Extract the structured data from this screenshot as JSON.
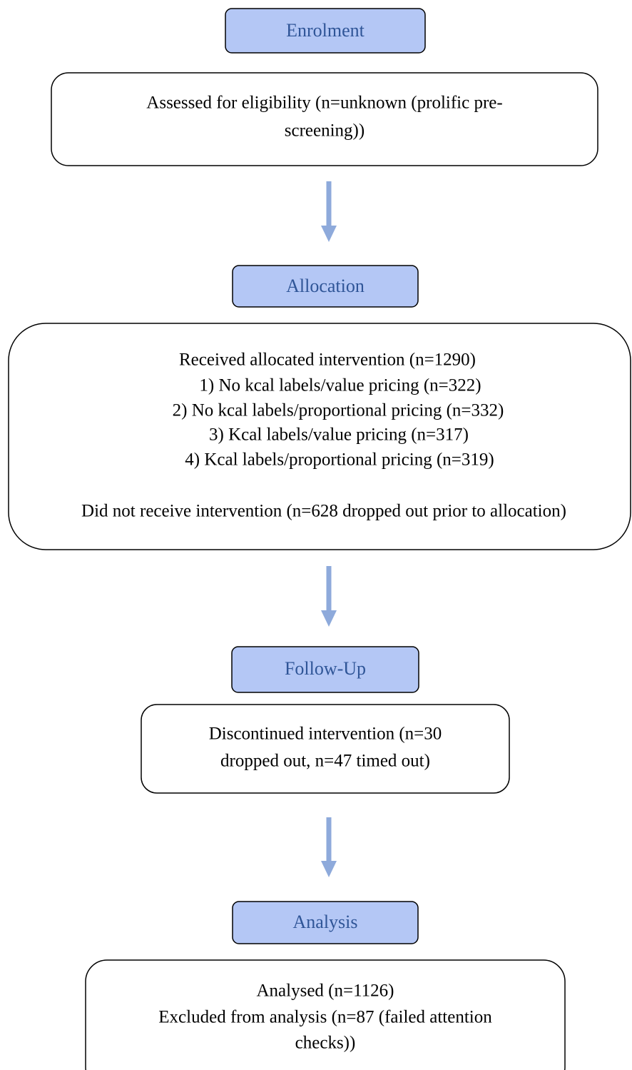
{
  "stages": [
    {
      "header": "Enrolment",
      "box_lines": [
        "Assessed for eligibility (n=unknown (prolific pre-",
        "screening))"
      ]
    },
    {
      "header": "Allocation",
      "box_lines": [
        "Received allocated intervention (n=1290)",
        "1)  No kcal labels/value pricing (n=322)",
        "2)  No kcal labels/proportional pricing (n=332)",
        "3)  Kcal labels/value pricing (n=317)",
        "4)  Kcal labels/proportional pricing (n=319)",
        "Did not receive intervention (n=628 dropped out prior to allocation)"
      ]
    },
    {
      "header": "Follow-Up",
      "box_lines": [
        "Discontinued intervention (n=30",
        "dropped out, n=47 timed out)"
      ]
    },
    {
      "header": "Analysis",
      "box_lines": [
        "Analysed (n=1126)",
        "Excluded from analysis (n=87 (failed attention",
        "checks))"
      ]
    }
  ]
}
